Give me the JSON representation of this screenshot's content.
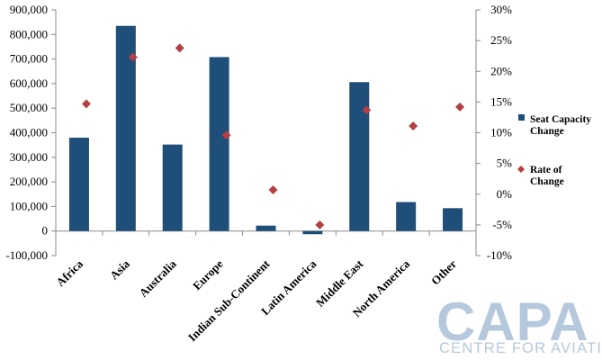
{
  "chart_data": {
    "type": "bar",
    "categories": [
      "Africa",
      "Asia",
      "Australia",
      "Europe",
      "Indian Sub-Continent",
      "Latin America",
      "Middle East",
      "North America",
      "Other"
    ],
    "series": [
      {
        "name": "Seat Capacity Change",
        "type": "bar",
        "axis": "left",
        "color": "#1f4e79",
        "values": [
          380000,
          835000,
          352000,
          708000,
          22000,
          -13000,
          606000,
          118000,
          93000
        ]
      },
      {
        "name": "Rate of Change",
        "type": "scatter",
        "axis": "right",
        "color": "#b24045",
        "marker": "diamond",
        "values": [
          14.7,
          22.3,
          23.8,
          9.6,
          0.7,
          -5.0,
          13.7,
          11.1,
          14.2
        ]
      }
    ],
    "ylim": [
      -100000,
      900000
    ],
    "y_ticks": [
      "-100,000",
      "0",
      "100,000",
      "200,000",
      "300,000",
      "400,000",
      "500,000",
      "600,000",
      "700,000",
      "800,000",
      "900,000"
    ],
    "y2lim": [
      -10,
      30
    ],
    "y2_ticks": [
      "-10%",
      "-5%",
      "0%",
      "5%",
      "10%",
      "15%",
      "20%",
      "25%",
      "30%"
    ],
    "legend": {
      "position": "right",
      "entries": [
        "Seat Capacity Change",
        "Rate of Change"
      ],
      "lines": [
        [
          "Seat Capacity",
          "Change"
        ],
        [
          "Rate of",
          "Change"
        ]
      ]
    },
    "grid": false
  },
  "watermark": {
    "text": "CAPA",
    "subtext": "CENTRE FOR AVIATION",
    "color": "#b6c9dc"
  }
}
